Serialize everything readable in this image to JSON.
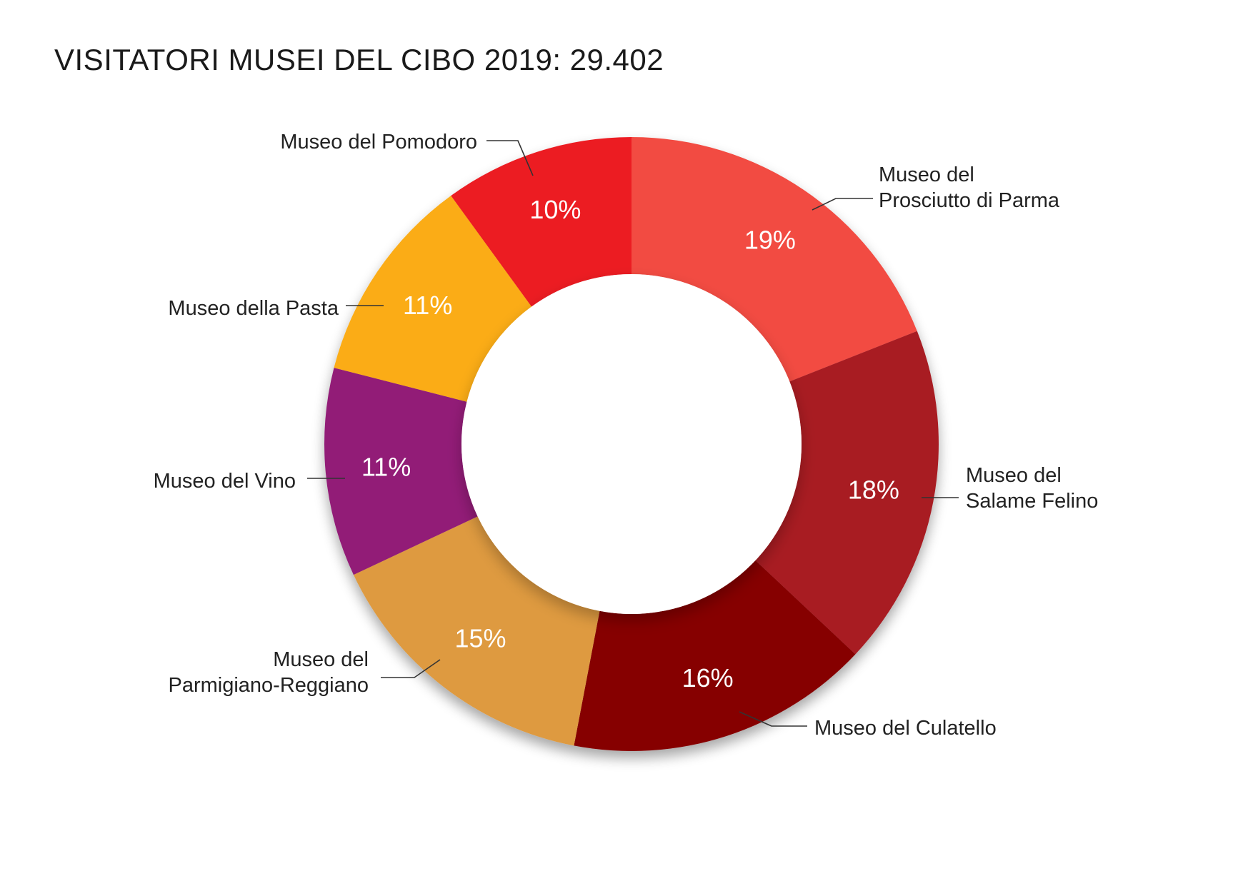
{
  "chart_data": {
    "type": "pie",
    "title": "VISITATORI MUSEI DEL CIBO 2019: 29.402",
    "donut": true,
    "start": "12 o'clock",
    "direction": "clockwise",
    "slices": [
      {
        "name": "Museo del Prosciutto di Parma",
        "lines": [
          "Museo del",
          "Prosciutto di Parma"
        ],
        "value": 19,
        "label": "19%",
        "color": "#f24c42"
      },
      {
        "name": "Museo del Salame Felino",
        "lines": [
          "Museo del",
          "Salame Felino"
        ],
        "value": 18,
        "label": "18%",
        "color": "#a81a21"
      },
      {
        "name": "Museo del Culatello",
        "lines": [
          "Museo del Culatello"
        ],
        "value": 16,
        "label": "16%",
        "color": "#860006"
      },
      {
        "name": "Museo del Parmigiano-Reggiano",
        "lines": [
          "Museo del",
          "Parmigiano-Reggiano"
        ],
        "value": 15,
        "label": "15%",
        "color": "#de9a40"
      },
      {
        "name": "Museo del Vino",
        "lines": [
          "Museo del Vino"
        ],
        "value": 11,
        "label": "11%",
        "color": "#921f77"
      },
      {
        "name": "Museo della Pasta",
        "lines": [
          "Museo della Pasta"
        ],
        "value": 11,
        "label": "11%",
        "color": "#fbac14"
      },
      {
        "name": "Museo del Pomodoro",
        "lines": [
          "Museo del Pomodoro"
        ],
        "value": 10,
        "label": "10%",
        "color": "#ec1c24"
      }
    ]
  }
}
